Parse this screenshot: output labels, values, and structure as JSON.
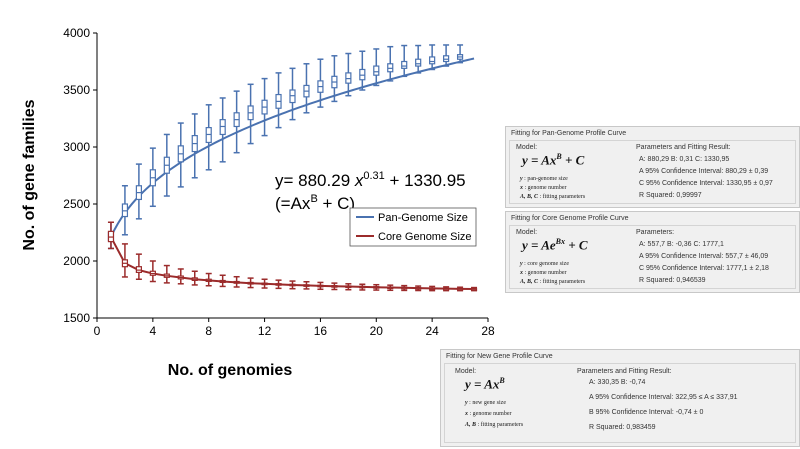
{
  "chart_data": {
    "type": "box-line",
    "xlabel": "No. of genomies",
    "ylabel": "No. of gene families",
    "xlim": [
      0,
      28
    ],
    "ylim": [
      1500,
      4000
    ],
    "x_ticks": [
      0,
      4,
      8,
      12,
      16,
      20,
      24,
      28
    ],
    "y_ticks": [
      1500,
      2000,
      2500,
      3000,
      3500,
      4000
    ],
    "grid": false,
    "legend_position": "bottom-right",
    "equation_line1_main": "y= 880.29 ",
    "equation_line1_x": "x",
    "equation_line1_exp": "0.31",
    "equation_line1_rest": " + 1330.95",
    "equation_line2_pre": "(=Ax",
    "equation_line2_exp": "B",
    "equation_line2_post": " + C)",
    "series": [
      {
        "name": "Pan-Genome Size",
        "color": "#4a72b0",
        "x": [
          1,
          2,
          3,
          4,
          5,
          6,
          7,
          8,
          9,
          10,
          11,
          12,
          13,
          14,
          15,
          16,
          17,
          18,
          19,
          20,
          21,
          22,
          23,
          24,
          25,
          26
        ],
        "median": [
          2210,
          2440,
          2600,
          2730,
          2840,
          2940,
          3030,
          3110,
          3180,
          3240,
          3300,
          3350,
          3400,
          3450,
          3490,
          3530,
          3570,
          3600,
          3630,
          3660,
          3690,
          3710,
          3730,
          3750,
          3770,
          3790
        ],
        "q1": [
          2180,
          2390,
          2540,
          2660,
          2770,
          2870,
          2960,
          3040,
          3110,
          3180,
          3240,
          3290,
          3340,
          3390,
          3440,
          3480,
          3520,
          3560,
          3590,
          3630,
          3660,
          3690,
          3710,
          3730,
          3750,
          3770
        ],
        "q3": [
          2250,
          2500,
          2660,
          2800,
          2910,
          3010,
          3100,
          3170,
          3240,
          3300,
          3360,
          3410,
          3460,
          3500,
          3540,
          3580,
          3620,
          3650,
          3680,
          3710,
          3730,
          3750,
          3770,
          3790,
          3800,
          3810
        ],
        "min": [
          2110,
          2230,
          2370,
          2480,
          2570,
          2650,
          2730,
          2800,
          2870,
          2950,
          3030,
          3100,
          3170,
          3240,
          3300,
          3350,
          3400,
          3450,
          3500,
          3540,
          3580,
          3620,
          3650,
          3680,
          3710,
          3740
        ],
        "max": [
          2340,
          2660,
          2850,
          2990,
          3110,
          3210,
          3290,
          3370,
          3430,
          3490,
          3550,
          3600,
          3650,
          3690,
          3730,
          3770,
          3800,
          3820,
          3840,
          3860,
          3880,
          3890,
          3890,
          3895,
          3895,
          3895
        ],
        "fit_curve": "A*x^B + C",
        "fit_params": [
          880.29,
          0.31,
          1330.95
        ]
      },
      {
        "name": "Core Genome Size",
        "color": "#9b2b2b",
        "x": [
          1,
          2,
          3,
          4,
          5,
          6,
          7,
          8,
          9,
          10,
          11,
          12,
          13,
          14,
          15,
          16,
          17,
          18,
          19,
          20,
          21,
          22,
          23,
          24,
          25,
          26,
          27
        ],
        "median": [
          2210,
          1980,
          1920,
          1890,
          1870,
          1855,
          1840,
          1830,
          1820,
          1812,
          1805,
          1800,
          1795,
          1790,
          1786,
          1782,
          1779,
          1776,
          1773,
          1770,
          1767,
          1765,
          1762,
          1760,
          1758,
          1756,
          1754
        ],
        "q1": [
          2170,
          1950,
          1900,
          1875,
          1857,
          1843,
          1830,
          1821,
          1812,
          1805,
          1798,
          1793,
          1788,
          1784,
          1780,
          1776,
          1773,
          1770,
          1767,
          1765,
          1762,
          1760,
          1758,
          1756,
          1754,
          1752,
          1751
        ],
        "q3": [
          2260,
          2010,
          1950,
          1910,
          1885,
          1868,
          1852,
          1840,
          1829,
          1820,
          1812,
          1806,
          1801,
          1796,
          1791,
          1787,
          1784,
          1781,
          1778,
          1775,
          1772,
          1769,
          1766,
          1764,
          1761,
          1759,
          1757
        ],
        "min": [
          2110,
          1860,
          1840,
          1820,
          1808,
          1800,
          1790,
          1783,
          1777,
          1772,
          1767,
          1763,
          1760,
          1757,
          1755,
          1752,
          1750,
          1748,
          1746,
          1745,
          1743,
          1742,
          1741,
          1740,
          1740,
          1740,
          1740
        ],
        "max": [
          2340,
          2150,
          2060,
          2000,
          1960,
          1930,
          1910,
          1890,
          1875,
          1862,
          1850,
          1840,
          1832,
          1824,
          1818,
          1812,
          1806,
          1800,
          1796,
          1792,
          1788,
          1784,
          1780,
          1777,
          1773,
          1770,
          1767
        ]
      }
    ]
  },
  "panels": {
    "pan": {
      "title": "Fitting for Pan-Genome Profile Curve",
      "model_label": "Model:",
      "formula_main": "y = Ax",
      "formula_sup": "B",
      "formula_tail": " + C",
      "vars": [
        {
          "sym": "y",
          "desc": " : pan-genome size"
        },
        {
          "sym": "x",
          "desc": " : genome number"
        },
        {
          "sym": "A, B, C",
          "desc": " : fitting parameters"
        }
      ],
      "params_label": "Parameters and Fitting Result:",
      "params_line": "A: 880,29   B: 0,31   C: 1330,95",
      "ci1": "A 95% Confidence Interval: 880,29 ± 0,39",
      "ci2": "C 95% Confidence Interval: 1330,95 ± 0,97",
      "r2": "R Squared: 0,99997"
    },
    "core": {
      "title": "Fitting for Core Genome Profile Curve",
      "model_label": "Model:",
      "formula_main": "y = Ae",
      "formula_sup": "Bx",
      "formula_tail": " + C",
      "vars": [
        {
          "sym": "y",
          "desc": " : core genome size"
        },
        {
          "sym": "x",
          "desc": " : genome number"
        },
        {
          "sym": "A, B, C",
          "desc": " : fitting parameters"
        }
      ],
      "params_label": "Parameters:",
      "params_line": "A: 557,7   B: -0,36   C: 1777,1",
      "ci1": "A 95% Confidence Interval: 557,7 ± 46,09",
      "ci2": "C 95% Confidence Interval: 1777,1 ± 2,18",
      "r2": "R Squared: 0,946539"
    },
    "newgene": {
      "title": "Fitting for New Gene Profile Curve",
      "model_label": "Model:",
      "formula_main": "y = Ax",
      "formula_sup": "B",
      "formula_tail": "",
      "vars": [
        {
          "sym": "y",
          "desc": " : new gene size"
        },
        {
          "sym": "x",
          "desc": " : genome number"
        },
        {
          "sym": "A, B",
          "desc": " : fitting parameters"
        }
      ],
      "params_label": "Parameters and Fitting Result:",
      "params_line": "A: 330,35   B: -0,74",
      "ci1": "A 95% Confidence Interval: 322,95 ≤ A ≤ 337,91",
      "ci2": "B 95% Confidence Interval: -0,74 ± 0",
      "r2": "R Squared: 0,983459"
    }
  }
}
